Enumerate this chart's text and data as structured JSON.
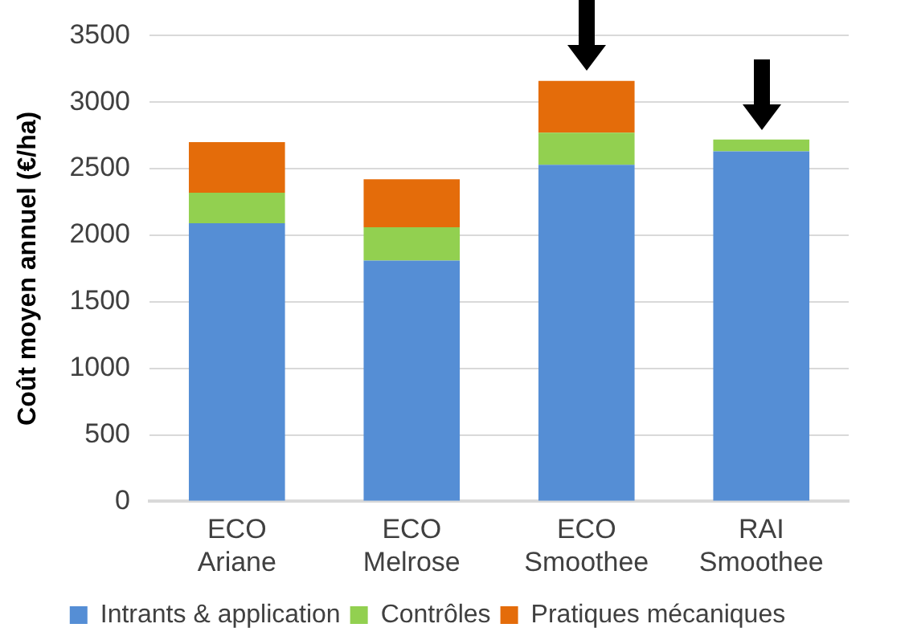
{
  "chart_data": {
    "type": "bar",
    "stacked": true,
    "ylabel": "Coût moyen annuel (€/ha)",
    "categories": [
      "ECO Ariane",
      "ECO Melrose",
      "ECO Smoothee",
      "RAI Smoothee"
    ],
    "series": [
      {
        "name": "Intrants & application",
        "color": "#558ed5",
        "values": [
          2090,
          1810,
          2530,
          2630
        ]
      },
      {
        "name": "Contrôles",
        "color": "#92d050",
        "values": [
          230,
          250,
          240,
          90
        ]
      },
      {
        "name": "Pratiques mécaniques",
        "color": "#e46c0a",
        "values": [
          380,
          360,
          390,
          0
        ]
      }
    ],
    "ylim": [
      0,
      3500
    ],
    "yticks": [
      0,
      500,
      1000,
      1500,
      2000,
      2500,
      3000,
      3500
    ],
    "grid": "y",
    "legend": "bottom"
  }
}
